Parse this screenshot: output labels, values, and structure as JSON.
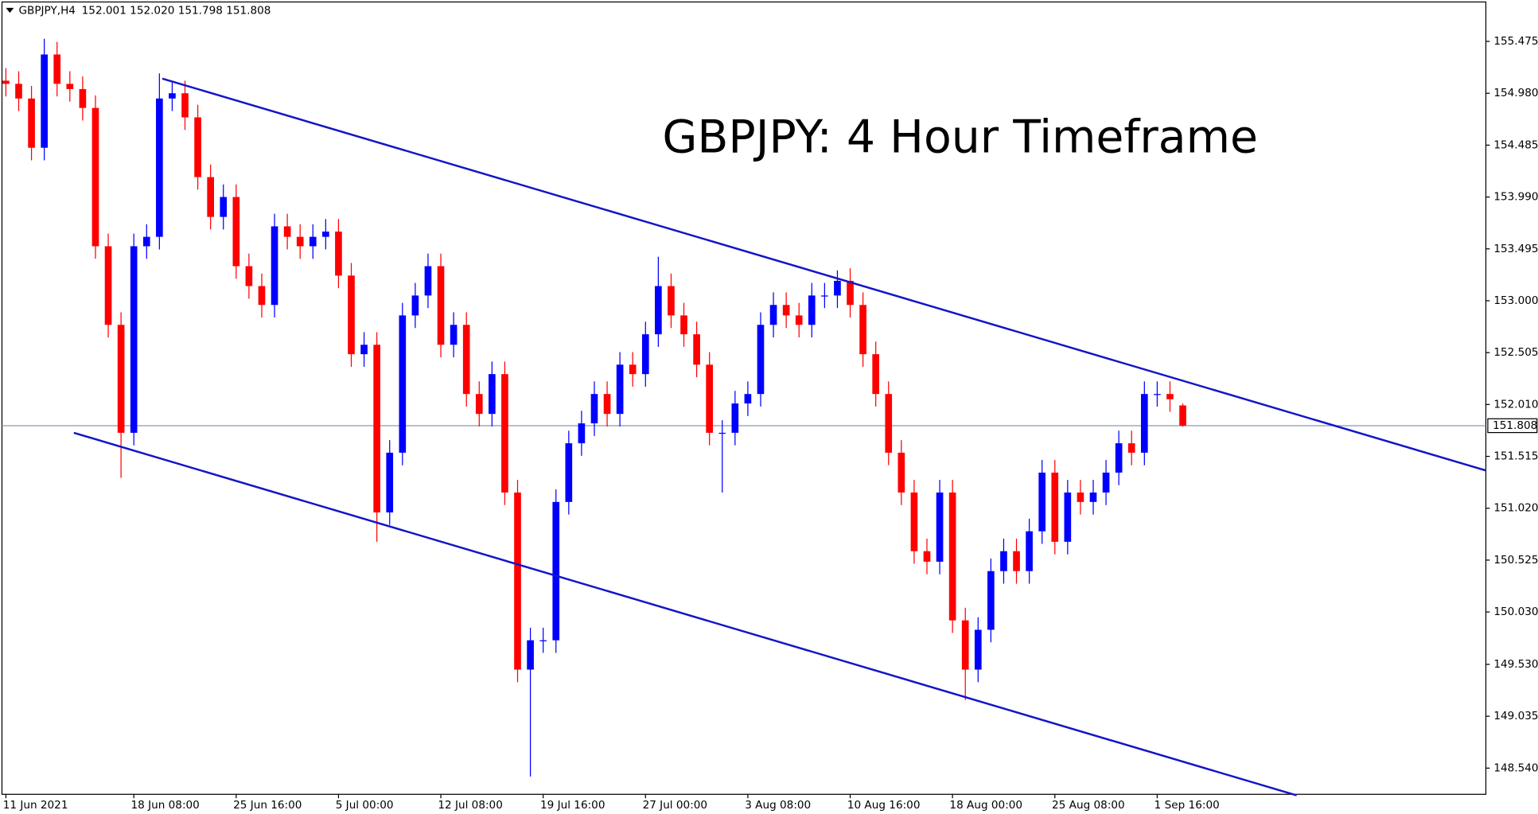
{
  "chart_data": {
    "type": "candlestick",
    "title": "GBPJPY: 4 Hour Timeframe",
    "symbol": "GBPJPY,H4",
    "quote": "152.001 152.020 151.798 151.808",
    "up_color": "#0000ff",
    "down_color": "#ff0000",
    "categories": [
      "11 Jun 2021",
      null,
      null,
      null,
      null,
      null,
      null,
      null,
      null,
      null,
      "18 Jun 08:00",
      null,
      null,
      null,
      null,
      null,
      null,
      null,
      "25 Jun 16:00",
      null,
      null,
      null,
      null,
      null,
      null,
      null,
      "5 Jul 00:00",
      null,
      null,
      null,
      null,
      null,
      null,
      null,
      "12 Jul 08:00",
      null,
      null,
      null,
      null,
      null,
      null,
      null,
      "19 Jul 16:00",
      null,
      null,
      null,
      null,
      null,
      null,
      null,
      "27 Jul 00:00",
      null,
      null,
      null,
      null,
      null,
      null,
      null,
      "3 Aug 08:00",
      null,
      null,
      null,
      null,
      null,
      null,
      null,
      "10 Aug 16:00",
      null,
      null,
      null,
      null,
      null,
      null,
      null,
      "18 Aug 00:00",
      null,
      null,
      null,
      null,
      null,
      null,
      null,
      "25 Aug 08:00",
      null,
      null,
      null,
      null,
      null,
      null,
      null,
      "1 Sep 16:00",
      null,
      null
    ],
    "open": [
      155.1,
      155.07,
      154.93,
      154.46,
      155.35,
      155.07,
      155.02,
      154.84,
      153.52,
      152.77,
      151.74,
      153.52,
      153.61,
      154.93,
      154.98,
      154.75,
      154.18,
      153.8,
      153.99,
      153.33,
      153.14,
      152.96,
      153.71,
      153.61,
      153.52,
      153.61,
      153.66,
      153.24,
      152.49,
      152.58,
      150.98,
      151.55,
      152.86,
      153.05,
      153.33,
      152.58,
      152.77,
      152.11,
      151.92,
      152.3,
      151.17,
      149.48,
      149.76,
      149.76,
      151.08,
      151.64,
      151.83,
      152.11,
      151.92,
      152.39,
      152.3,
      152.68,
      153.14,
      152.86,
      152.68,
      152.39,
      151.74,
      151.74,
      152.02,
      152.11,
      152.77,
      152.96,
      152.86,
      152.77,
      153.05,
      153.05,
      153.19,
      152.96,
      152.49,
      152.11,
      151.55,
      151.17,
      150.61,
      150.51,
      151.17,
      149.95,
      149.48,
      149.86,
      150.42,
      150.61,
      150.42,
      150.8,
      151.36,
      150.7,
      151.17,
      151.08,
      151.17,
      151.36,
      151.64,
      151.55,
      152.11,
      152.11,
      152.001
    ],
    "high": [
      155.22,
      155.19,
      155.05,
      155.5,
      155.47,
      155.19,
      155.14,
      154.96,
      153.64,
      152.89,
      153.64,
      153.73,
      155.17,
      155.1,
      155.1,
      154.87,
      154.3,
      154.11,
      154.11,
      153.45,
      153.26,
      153.83,
      153.83,
      153.73,
      153.73,
      153.78,
      153.78,
      153.36,
      152.7,
      152.7,
      151.67,
      152.98,
      153.17,
      153.45,
      153.45,
      152.89,
      152.89,
      152.23,
      152.42,
      152.42,
      151.29,
      149.88,
      149.88,
      151.2,
      151.76,
      151.95,
      152.23,
      152.23,
      152.51,
      152.51,
      152.8,
      153.42,
      153.26,
      152.98,
      152.8,
      152.51,
      151.86,
      152.14,
      152.23,
      152.89,
      153.08,
      153.08,
      152.98,
      153.17,
      153.17,
      153.29,
      153.31,
      153.08,
      152.61,
      152.23,
      151.67,
      151.29,
      150.73,
      151.29,
      151.29,
      150.07,
      149.98,
      150.54,
      150.73,
      150.73,
      150.92,
      151.48,
      151.48,
      151.29,
      151.29,
      151.29,
      151.48,
      151.76,
      151.76,
      152.23,
      152.23,
      152.23,
      152.02
    ],
    "low": [
      154.95,
      154.81,
      154.34,
      154.34,
      154.95,
      154.9,
      154.72,
      153.4,
      152.65,
      151.31,
      151.62,
      153.4,
      153.49,
      154.81,
      154.63,
      154.06,
      153.68,
      153.68,
      153.21,
      153.02,
      152.84,
      152.84,
      153.49,
      153.4,
      153.4,
      153.49,
      153.12,
      152.37,
      152.37,
      150.7,
      150.86,
      151.43,
      152.74,
      152.93,
      152.46,
      152.46,
      151.99,
      151.8,
      151.8,
      151.05,
      149.36,
      148.46,
      149.64,
      149.64,
      150.96,
      151.52,
      151.71,
      151.8,
      151.8,
      152.18,
      152.18,
      152.56,
      152.74,
      152.56,
      152.27,
      151.62,
      151.17,
      151.62,
      151.9,
      151.99,
      152.65,
      152.74,
      152.65,
      152.65,
      152.93,
      152.93,
      152.84,
      152.37,
      151.99,
      151.43,
      151.05,
      150.49,
      150.39,
      150.39,
      149.83,
      149.19,
      149.36,
      149.74,
      150.3,
      150.3,
      150.3,
      150.68,
      150.58,
      150.58,
      150.96,
      150.96,
      151.05,
      151.24,
      151.43,
      151.43,
      151.99,
      151.94,
      151.798
    ],
    "close": [
      155.07,
      154.93,
      154.46,
      155.35,
      155.07,
      155.02,
      154.84,
      153.52,
      152.77,
      151.74,
      153.52,
      153.61,
      154.93,
      154.98,
      154.75,
      154.18,
      153.8,
      153.99,
      153.33,
      153.14,
      152.96,
      153.71,
      153.61,
      153.52,
      153.61,
      153.66,
      153.24,
      152.49,
      152.58,
      150.98,
      151.55,
      152.86,
      153.05,
      153.33,
      152.58,
      152.77,
      152.11,
      151.92,
      152.3,
      151.17,
      149.48,
      149.76,
      149.76,
      151.08,
      151.64,
      151.83,
      152.11,
      151.92,
      152.39,
      152.3,
      152.68,
      153.14,
      152.86,
      152.68,
      152.39,
      151.74,
      151.74,
      152.02,
      152.11,
      152.77,
      152.96,
      152.86,
      152.77,
      153.05,
      153.05,
      153.19,
      152.96,
      152.49,
      152.11,
      151.55,
      151.17,
      150.61,
      150.51,
      151.17,
      149.95,
      149.48,
      149.86,
      150.42,
      150.61,
      150.42,
      150.8,
      151.36,
      150.7,
      151.17,
      151.08,
      151.17,
      151.36,
      151.64,
      151.55,
      152.11,
      152.11,
      152.06,
      151.808
    ],
    "last_price": 151.808,
    "trendlines": [
      {
        "color": "#1414c8",
        "x": [
          12.23,
          115.7
        ],
        "y": [
          155.12,
          151.38
        ]
      },
      {
        "color": "#1414c8",
        "x": [
          5.31,
          100.9
        ],
        "y": [
          151.74,
          148.28
        ]
      }
    ],
    "ylim": [
      148.29,
      155.87
    ],
    "yticks": [
      155.475,
      {
        "value": 154.98,
        "label": "154.980"
      },
      154.485,
      {
        "value": 153.99,
        "label": "153.990"
      },
      153.495,
      {
        "value": 153,
        "label": "153.000"
      },
      152.505,
      {
        "value": 152.01,
        "label": "152.010"
      },
      151.515,
      {
        "value": 151.02,
        "label": "151.020"
      },
      150.525,
      {
        "value": 150.03,
        "label": "150.030"
      },
      {
        "value": 149.53,
        "label": "149.530"
      },
      149.035,
      {
        "value": 148.54,
        "label": "148.540"
      }
    ]
  }
}
